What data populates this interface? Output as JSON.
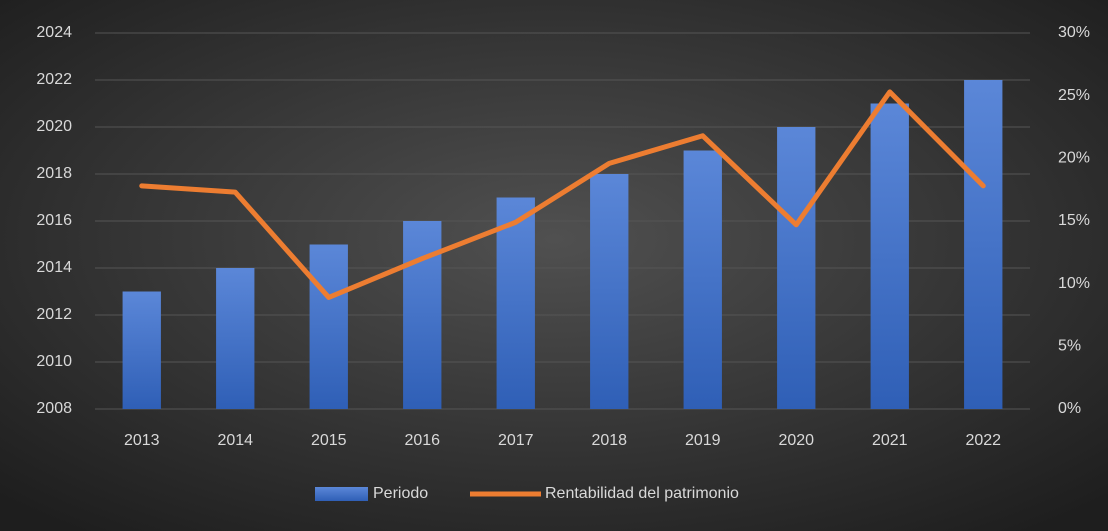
{
  "chart_data": {
    "type": "bar",
    "categories": [
      "2013",
      "2014",
      "2015",
      "2016",
      "2017",
      "2018",
      "2019",
      "2020",
      "2021",
      "2022"
    ],
    "series": [
      {
        "name": "Periodo",
        "color": "#4472c4",
        "type": "bar",
        "values": [
          2013,
          2014,
          2015,
          2016,
          2017,
          2018,
          2019,
          2020,
          2021,
          2022
        ]
      },
      {
        "name": "Rentabilidad del patrimonio",
        "color": "#ed7d31",
        "type": "line",
        "axis": "y2",
        "values": [
          17.8,
          17.3,
          8.9,
          12.0,
          14.9,
          19.6,
          21.8,
          14.7,
          25.3,
          17.8
        ]
      }
    ],
    "ylim": [
      2008,
      2024
    ],
    "yticks": [
      2008,
      2010,
      2012,
      2014,
      2016,
      2018,
      2020,
      2022,
      2024
    ],
    "y2lim": [
      0,
      30
    ],
    "y2ticks": [
      {
        "value": 0,
        "label": "0%"
      },
      {
        "value": 5,
        "label": "5%"
      },
      {
        "value": 10,
        "label": "10%"
      },
      {
        "value": 15,
        "label": "15%"
      },
      {
        "value": 20,
        "label": "20%"
      },
      {
        "value": 25,
        "label": "25%"
      },
      {
        "value": 30,
        "label": "30%"
      }
    ],
    "grid": true,
    "legend": "bottom"
  }
}
